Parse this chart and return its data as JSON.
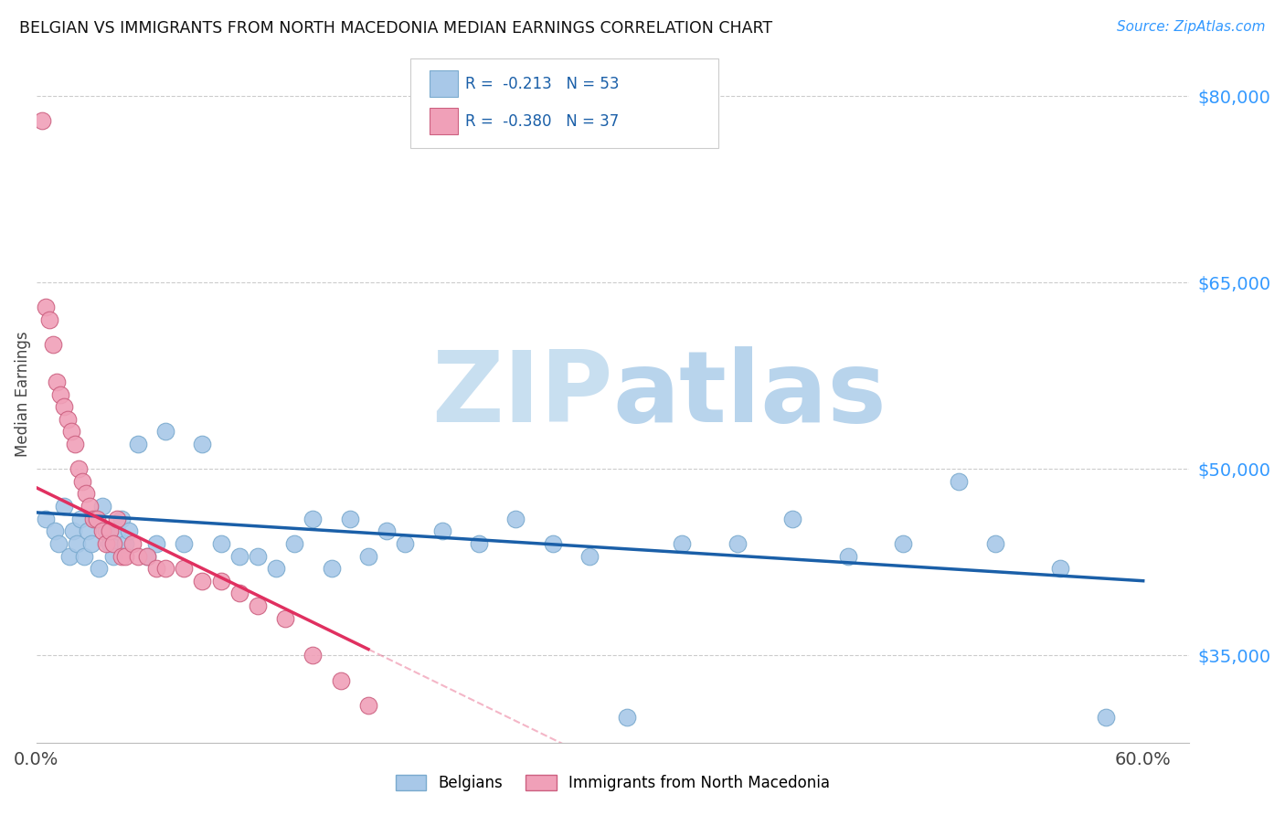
{
  "title": "BELGIAN VS IMMIGRANTS FROM NORTH MACEDONIA MEDIAN EARNINGS CORRELATION CHART",
  "source": "Source: ZipAtlas.com",
  "ylabel": "Median Earnings",
  "xlim": [
    0.0,
    0.625
  ],
  "ylim": [
    28000,
    84000
  ],
  "xticks": [
    0.0,
    0.1,
    0.2,
    0.3,
    0.4,
    0.5,
    0.6
  ],
  "xticklabels": [
    "0.0%",
    "",
    "",
    "",
    "",
    "",
    "60.0%"
  ],
  "ytick_positions": [
    35000,
    50000,
    65000,
    80000
  ],
  "ytick_labels": [
    "$35,000",
    "$50,000",
    "$65,000",
    "$80,000"
  ],
  "belgian_color": "#a8c8e8",
  "mac_color": "#f0a0b8",
  "blue_line_color": "#1a5fa8",
  "pink_line_color": "#e03060",
  "watermark_color": "#c8dff0",
  "legend_R1": "R =  -0.213   N = 53",
  "legend_R2": "R =  -0.380   N = 37",
  "legend_label1": "Belgians",
  "legend_label2": "Immigrants from North Macedonia",
  "belgian_x": [
    0.005,
    0.01,
    0.012,
    0.015,
    0.018,
    0.02,
    0.022,
    0.024,
    0.026,
    0.028,
    0.03,
    0.032,
    0.034,
    0.036,
    0.038,
    0.04,
    0.042,
    0.044,
    0.046,
    0.048,
    0.05,
    0.055,
    0.06,
    0.065,
    0.07,
    0.08,
    0.09,
    0.1,
    0.11,
    0.12,
    0.13,
    0.14,
    0.15,
    0.16,
    0.17,
    0.18,
    0.19,
    0.2,
    0.22,
    0.24,
    0.26,
    0.28,
    0.3,
    0.32,
    0.35,
    0.38,
    0.41,
    0.44,
    0.47,
    0.5,
    0.52,
    0.555,
    0.58
  ],
  "belgian_y": [
    46000,
    45000,
    44000,
    47000,
    43000,
    45000,
    44000,
    46000,
    43000,
    45000,
    44000,
    46000,
    42000,
    47000,
    45000,
    44000,
    43000,
    45000,
    46000,
    44000,
    45000,
    52000,
    43000,
    44000,
    53000,
    44000,
    52000,
    44000,
    43000,
    43000,
    42000,
    44000,
    46000,
    42000,
    46000,
    43000,
    45000,
    44000,
    45000,
    44000,
    46000,
    44000,
    43000,
    30000,
    44000,
    44000,
    46000,
    43000,
    44000,
    49000,
    44000,
    42000,
    30000
  ],
  "mac_x": [
    0.003,
    0.005,
    0.007,
    0.009,
    0.011,
    0.013,
    0.015,
    0.017,
    0.019,
    0.021,
    0.023,
    0.025,
    0.027,
    0.029,
    0.031,
    0.033,
    0.036,
    0.038,
    0.04,
    0.042,
    0.044,
    0.046,
    0.048,
    0.052,
    0.055,
    0.06,
    0.065,
    0.07,
    0.08,
    0.09,
    0.1,
    0.11,
    0.12,
    0.135,
    0.15,
    0.165,
    0.18
  ],
  "mac_y": [
    78000,
    63000,
    62000,
    60000,
    57000,
    56000,
    55000,
    54000,
    53000,
    52000,
    50000,
    49000,
    48000,
    47000,
    46000,
    46000,
    45000,
    44000,
    45000,
    44000,
    46000,
    43000,
    43000,
    44000,
    43000,
    43000,
    42000,
    42000,
    42000,
    41000,
    41000,
    40000,
    39000,
    38000,
    35000,
    33000,
    31000
  ],
  "blue_line_x0": 0.0,
  "blue_line_y0": 46500,
  "blue_line_x1": 0.6,
  "blue_line_y1": 41000,
  "pink_line_x0": 0.0,
  "pink_line_y0": 48500,
  "pink_line_x1": 0.18,
  "pink_line_y1": 35500
}
